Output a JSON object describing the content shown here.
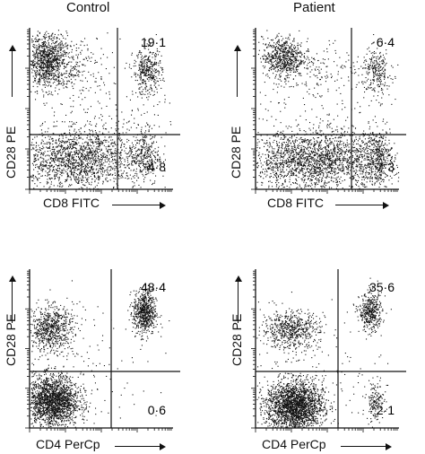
{
  "columns": {
    "control": "Control",
    "patient": "Patient"
  },
  "chart_data": [
    {
      "type": "scatter",
      "title": "Control",
      "xlabel": "CD8 FITC",
      "ylabel": "CD28 PE",
      "quadrant_values": {
        "upper_right": "19·1",
        "lower_right": "4·8"
      },
      "populations": [
        {
          "region": "upper-left",
          "relative_x": 0.1,
          "relative_y": 0.78
        },
        {
          "region": "upper-right",
          "relative_x": 0.82,
          "relative_y": 0.73
        },
        {
          "region": "lower-left-band",
          "relative_x": 0.35,
          "relative_y": 0.2
        },
        {
          "region": "lower-right",
          "relative_x": 0.83,
          "relative_y": 0.2
        }
      ]
    },
    {
      "type": "scatter",
      "title": "Patient",
      "xlabel": "CD8 FITC",
      "ylabel": "CD28 PE",
      "quadrant_values": {
        "upper_right": "6·4",
        "lower_right": "7·3"
      },
      "populations": [
        {
          "region": "upper-left",
          "relative_x": 0.2,
          "relative_y": 0.81
        },
        {
          "region": "upper-right",
          "relative_x": 0.83,
          "relative_y": 0.73
        },
        {
          "region": "lower-left-band",
          "relative_x": 0.4,
          "relative_y": 0.18
        },
        {
          "region": "lower-right",
          "relative_x": 0.85,
          "relative_y": 0.2
        }
      ]
    },
    {
      "type": "scatter",
      "title": "",
      "xlabel": "CD4 PerCp",
      "ylabel": "CD28 PE",
      "quadrant_values": {
        "upper_right": "48·4",
        "lower_right": "0·6"
      },
      "populations": [
        {
          "region": "upper-left",
          "relative_x": 0.13,
          "relative_y": 0.62
        },
        {
          "region": "upper-right",
          "relative_x": 0.8,
          "relative_y": 0.72
        },
        {
          "region": "lower-left",
          "relative_x": 0.15,
          "relative_y": 0.18
        }
      ]
    },
    {
      "type": "scatter",
      "title": "",
      "xlabel": "CD4 PerCp",
      "ylabel": "CD28 PE",
      "quadrant_values": {
        "upper_right": "35·6",
        "lower_right": "2·1"
      },
      "populations": [
        {
          "region": "upper-left",
          "relative_x": 0.25,
          "relative_y": 0.62
        },
        {
          "region": "upper-right",
          "relative_x": 0.8,
          "relative_y": 0.73
        },
        {
          "region": "lower-left",
          "relative_x": 0.27,
          "relative_y": 0.15
        },
        {
          "region": "lower-right",
          "relative_x": 0.83,
          "relative_y": 0.17
        }
      ]
    }
  ]
}
